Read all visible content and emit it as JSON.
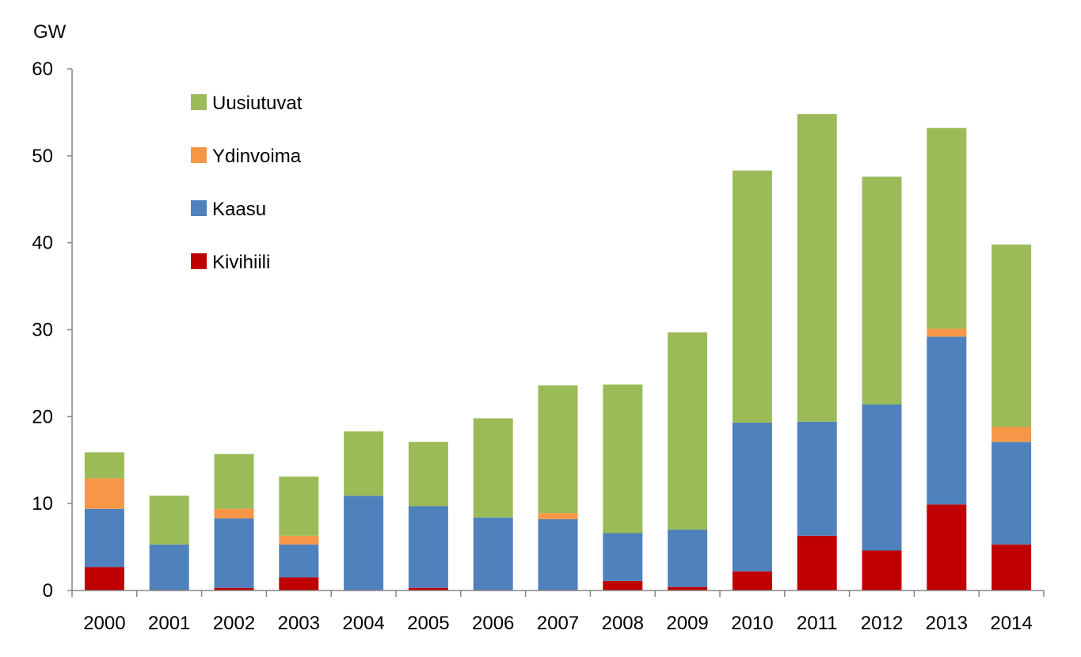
{
  "chart_data": {
    "type": "bar",
    "stacked": true,
    "ylabel": "GW",
    "ylim": [
      0,
      60
    ],
    "yticks": [
      0,
      10,
      20,
      30,
      40,
      50,
      60
    ],
    "grid": false,
    "legend_position": "top-left",
    "categories": [
      "2000",
      "2001",
      "2002",
      "2003",
      "2004",
      "2005",
      "2006",
      "2007",
      "2008",
      "2009",
      "2010",
      "2011",
      "2012",
      "2013",
      "2014"
    ],
    "series": [
      {
        "name": "Kivihiili",
        "color": "#c00000",
        "values": [
          2.7,
          0,
          0.3,
          1.5,
          0,
          0.3,
          0,
          0,
          1.1,
          0.4,
          2.2,
          6.3,
          4.6,
          9.9,
          5.3
        ]
      },
      {
        "name": "Kaasu",
        "color": "#4f81bd",
        "values": [
          6.7,
          5.3,
          8.0,
          3.8,
          10.9,
          9.4,
          8.4,
          8.2,
          5.5,
          6.6,
          17.1,
          13.1,
          16.8,
          19.3,
          11.8
        ]
      },
      {
        "name": "Ydinvoima",
        "color": "#f79646",
        "values": [
          3.5,
          0,
          1.1,
          1.0,
          0,
          0,
          0,
          0.7,
          0,
          0,
          0,
          0,
          0,
          0.9,
          1.7
        ]
      },
      {
        "name": "Uusiutuvat",
        "color": "#9bbb59",
        "values": [
          3.0,
          5.6,
          6.3,
          6.8,
          7.4,
          7.4,
          11.4,
          14.7,
          17.1,
          22.7,
          29.0,
          35.4,
          26.2,
          23.1,
          21.0
        ]
      }
    ],
    "legend_order": [
      "Uusiutuvat",
      "Ydinvoima",
      "Kaasu",
      "Kivihiili"
    ]
  }
}
